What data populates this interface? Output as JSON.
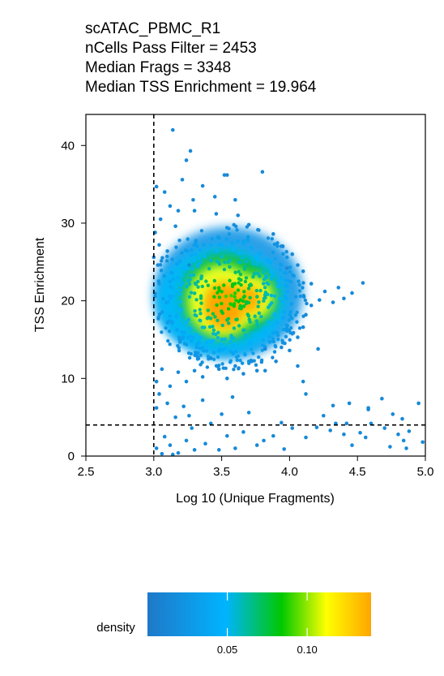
{
  "chart_data": {
    "type": "scatter",
    "title_lines": [
      "scATAC_PBMC_R1",
      "nCells Pass Filter = 2453",
      "Median Frags = 3348",
      "Median TSS Enrichment = 19.964"
    ],
    "xlabel": "Log 10 (Unique Fragments)",
    "ylabel": "TSS Enrichment",
    "xlim": [
      2.5,
      5.0
    ],
    "ylim": [
      0,
      44
    ],
    "x_ticks": [
      2.5,
      3.0,
      3.5,
      4.0,
      4.5,
      5.0
    ],
    "x_tick_labels": [
      "2.5",
      "3.0",
      "3.5",
      "4.0",
      "4.5",
      "5.0"
    ],
    "y_ticks": [
      0,
      10,
      20,
      30,
      40
    ],
    "y_tick_labels": [
      "0",
      "10",
      "20",
      "30",
      "40"
    ],
    "cutoff_x": 3.0,
    "cutoff_y": 4,
    "grid": false,
    "color_by": "density",
    "legend": {
      "title": "density",
      "placement": "bottom",
      "ticks": [
        0.05,
        0.1
      ],
      "tick_labels": [
        "0.05",
        "0.10"
      ],
      "range": [
        0.0,
        0.14
      ],
      "colors": [
        "#1f78c8",
        "#00b4ff",
        "#00c800",
        "#ffff00",
        "#ffa500"
      ]
    },
    "points": [
      [
        3.14,
        42.0,
        0.01
      ],
      [
        3.27,
        39.3,
        0.01
      ],
      [
        3.24,
        38.1,
        0.01
      ],
      [
        3.52,
        36.2,
        0.01
      ],
      [
        3.54,
        36.2,
        0.01
      ],
      [
        3.8,
        36.6,
        0.01
      ],
      [
        3.21,
        35.6,
        0.01
      ],
      [
        3.02,
        34.7,
        0.01
      ],
      [
        3.36,
        34.8,
        0.01
      ],
      [
        3.08,
        34.0,
        0.01
      ],
      [
        3.45,
        33.4,
        0.01
      ],
      [
        3.29,
        33.0,
        0.01
      ],
      [
        3.6,
        33.0,
        0.01
      ],
      [
        3.12,
        32.2,
        0.01
      ],
      [
        3.18,
        31.6,
        0.01
      ],
      [
        3.3,
        31.6,
        0.01
      ],
      [
        3.46,
        31.2,
        0.01
      ],
      [
        3.62,
        31.0,
        0.01
      ],
      [
        3.7,
        29.8,
        0.01
      ],
      [
        3.16,
        29.6,
        0.01
      ],
      [
        3.05,
        30.5,
        0.01
      ],
      [
        3.01,
        28.8,
        0.01
      ],
      [
        3.88,
        28.6,
        0.01
      ],
      [
        3.95,
        27.0,
        0.01
      ],
      [
        4.02,
        26.0,
        0.01
      ],
      [
        3.04,
        27.2,
        0.01
      ],
      [
        3.1,
        26.4,
        0.01
      ],
      [
        3.0,
        25.6,
        0.01
      ],
      [
        3.03,
        24.6,
        0.01
      ],
      [
        3.98,
        24.2,
        0.01
      ],
      [
        4.06,
        24.6,
        0.01
      ],
      [
        4.1,
        23.8,
        0.01
      ],
      [
        4.16,
        22.2,
        0.01
      ],
      [
        4.26,
        21.2,
        0.01
      ],
      [
        4.36,
        21.7,
        0.01
      ],
      [
        4.46,
        21.0,
        0.01
      ],
      [
        4.54,
        22.3,
        0.01
      ],
      [
        4.4,
        20.3,
        0.01
      ],
      [
        4.32,
        19.8,
        0.01
      ],
      [
        4.22,
        20.1,
        0.01
      ],
      [
        4.16,
        19.4,
        0.01
      ],
      [
        4.12,
        18.2,
        0.01
      ],
      [
        4.1,
        16.6,
        0.01
      ],
      [
        4.06,
        15.3,
        0.01
      ],
      [
        4.21,
        13.8,
        0.01
      ],
      [
        4.0,
        13.6,
        0.01
      ],
      [
        3.94,
        14.0,
        0.01
      ],
      [
        3.9,
        12.2,
        0.01
      ],
      [
        3.82,
        13.8,
        0.01
      ],
      [
        3.72,
        12.2,
        0.01
      ],
      [
        3.76,
        11.0,
        0.01
      ],
      [
        4.06,
        11.6,
        0.01
      ],
      [
        4.1,
        9.6,
        0.01
      ],
      [
        4.12,
        8.0,
        0.01
      ],
      [
        3.66,
        10.6,
        0.01
      ],
      [
        3.6,
        11.6,
        0.01
      ],
      [
        3.54,
        10.0,
        0.01
      ],
      [
        3.48,
        11.2,
        0.01
      ],
      [
        3.42,
        12.6,
        0.01
      ],
      [
        3.36,
        10.2,
        0.01
      ],
      [
        3.3,
        11.0,
        0.01
      ],
      [
        3.24,
        9.6,
        0.01
      ],
      [
        3.18,
        10.8,
        0.01
      ],
      [
        3.12,
        9.0,
        0.01
      ],
      [
        3.06,
        11.2,
        0.01
      ],
      [
        3.02,
        9.6,
        0.01
      ],
      [
        3.04,
        8.0,
        0.01
      ],
      [
        3.1,
        6.8,
        0.01
      ],
      [
        3.22,
        6.4,
        0.01
      ],
      [
        3.26,
        5.2,
        0.01
      ],
      [
        3.16,
        5.0,
        0.01
      ],
      [
        3.02,
        6.2,
        0.01
      ],
      [
        3.36,
        7.2,
        0.01
      ],
      [
        3.58,
        7.6,
        0.01
      ],
      [
        3.7,
        5.6,
        0.01
      ],
      [
        3.5,
        5.4,
        0.01
      ],
      [
        3.42,
        4.2,
        0.01
      ],
      [
        4.25,
        5.2,
        0.01
      ],
      [
        4.32,
        6.5,
        0.01
      ],
      [
        4.44,
        6.8,
        0.01
      ],
      [
        4.58,
        6.2,
        0.01
      ],
      [
        4.68,
        7.4,
        0.01
      ],
      [
        4.76,
        5.4,
        0.01
      ],
      [
        4.83,
        4.8,
        0.01
      ],
      [
        4.95,
        6.8,
        0.01
      ],
      [
        4.6,
        4.2,
        0.01
      ],
      [
        4.52,
        3.0,
        0.01
      ],
      [
        4.4,
        2.8,
        0.01
      ],
      [
        4.3,
        3.3,
        0.01
      ],
      [
        4.2,
        3.7,
        0.01
      ],
      [
        4.12,
        2.4,
        0.01
      ],
      [
        4.02,
        3.6,
        0.01
      ],
      [
        3.94,
        4.3,
        0.01
      ],
      [
        3.88,
        2.6,
        0.01
      ],
      [
        3.76,
        1.4,
        0.01
      ],
      [
        3.6,
        1.0,
        0.01
      ],
      [
        3.54,
        2.6,
        0.01
      ],
      [
        3.48,
        0.8,
        0.01
      ],
      [
        3.38,
        1.6,
        0.01
      ],
      [
        3.3,
        0.8,
        0.01
      ],
      [
        3.24,
        2.0,
        0.01
      ],
      [
        3.18,
        0.4,
        0.01
      ],
      [
        3.12,
        1.4,
        0.01
      ],
      [
        3.06,
        0.3,
        0.01
      ],
      [
        3.02,
        1.0,
        0.01
      ],
      [
        3.14,
        0.2,
        0.01
      ],
      [
        4.46,
        1.4,
        0.01
      ],
      [
        4.74,
        1.2,
        0.01
      ],
      [
        4.84,
        2.0,
        0.01
      ],
      [
        4.86,
        1.0,
        0.01
      ],
      [
        4.98,
        1.8,
        0.01
      ],
      [
        4.7,
        3.6,
        0.01
      ],
      [
        4.88,
        3.2,
        0.01
      ],
      [
        4.8,
        2.8,
        0.01
      ],
      [
        4.56,
        2.4,
        0.01
      ],
      [
        4.34,
        4.2,
        0.01
      ],
      [
        4.42,
        4.2,
        0.01
      ],
      [
        3.96,
        0.9,
        0.01
      ],
      [
        3.81,
        2.0,
        0.01
      ],
      [
        3.66,
        3.1,
        0.01
      ],
      [
        3.28,
        3.6,
        0.01
      ],
      [
        3.08,
        2.5,
        0.01
      ],
      [
        4.58,
        6.0,
        0.01
      ],
      [
        3.82,
        11.0,
        0.01
      ],
      [
        3.26,
        24.6,
        0.01
      ]
    ]
  }
}
